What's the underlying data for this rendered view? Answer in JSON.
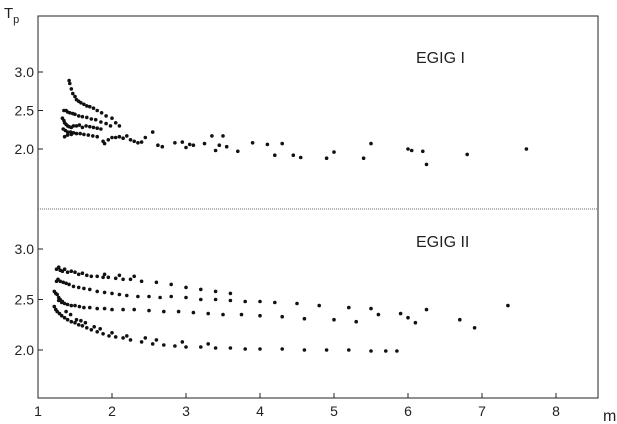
{
  "chart_data": {
    "type": "scatter",
    "y_axis_label": "Tp",
    "x_axis_label": "m",
    "x_range": [
      1,
      8
    ],
    "x_ticks": [
      "1",
      "2",
      "3",
      "4",
      "5",
      "6",
      "7",
      "8"
    ],
    "panels": [
      {
        "title": "EGIG I",
        "y_range": [
          1.6,
          3.3
        ],
        "y_ticks": [
          "3.0",
          "2.5",
          "2.0"
        ],
        "points": [
          [
            1.42,
            2.89
          ],
          [
            1.43,
            2.85
          ],
          [
            1.45,
            2.78
          ],
          [
            1.47,
            2.72
          ],
          [
            1.5,
            2.68
          ],
          [
            1.52,
            2.64
          ],
          [
            1.55,
            2.62
          ],
          [
            1.58,
            2.6
          ],
          [
            1.62,
            2.58
          ],
          [
            1.66,
            2.56
          ],
          [
            1.7,
            2.55
          ],
          [
            1.75,
            2.53
          ],
          [
            1.8,
            2.5
          ],
          [
            1.86,
            2.47
          ],
          [
            1.92,
            2.43
          ],
          [
            2.0,
            2.4
          ],
          [
            2.05,
            2.34
          ],
          [
            2.1,
            2.3
          ],
          [
            1.35,
            2.5
          ],
          [
            1.38,
            2.5
          ],
          [
            1.4,
            2.48
          ],
          [
            1.43,
            2.47
          ],
          [
            1.47,
            2.46
          ],
          [
            1.5,
            2.45
          ],
          [
            1.55,
            2.43
          ],
          [
            1.6,
            2.42
          ],
          [
            1.66,
            2.41
          ],
          [
            1.72,
            2.39
          ],
          [
            1.78,
            2.38
          ],
          [
            1.85,
            2.35
          ],
          [
            1.92,
            2.33
          ],
          [
            1.98,
            2.3
          ],
          [
            1.33,
            2.4
          ],
          [
            1.35,
            2.37
          ],
          [
            1.36,
            2.34
          ],
          [
            1.38,
            2.32
          ],
          [
            1.4,
            2.3
          ],
          [
            1.42,
            2.29
          ],
          [
            1.45,
            2.28
          ],
          [
            1.48,
            2.3
          ],
          [
            1.52,
            2.3
          ],
          [
            1.56,
            2.31
          ],
          [
            1.6,
            2.28
          ],
          [
            1.65,
            2.3
          ],
          [
            1.7,
            2.29
          ],
          [
            1.75,
            2.28
          ],
          [
            1.8,
            2.27
          ],
          [
            1.85,
            2.26
          ],
          [
            1.34,
            2.26
          ],
          [
            1.37,
            2.24
          ],
          [
            1.4,
            2.22
          ],
          [
            1.44,
            2.22
          ],
          [
            1.48,
            2.21
          ],
          [
            1.52,
            2.2
          ],
          [
            1.57,
            2.2
          ],
          [
            1.62,
            2.19
          ],
          [
            1.68,
            2.18
          ],
          [
            1.74,
            2.17
          ],
          [
            1.8,
            2.16
          ],
          [
            1.36,
            2.16
          ],
          [
            1.4,
            2.18
          ],
          [
            1.45,
            2.19
          ],
          [
            1.88,
            2.1
          ],
          [
            1.9,
            2.07
          ],
          [
            1.95,
            2.12
          ],
          [
            2.0,
            2.15
          ],
          [
            2.05,
            2.15
          ],
          [
            2.1,
            2.16
          ],
          [
            2.15,
            2.14
          ],
          [
            2.2,
            2.17
          ],
          [
            2.25,
            2.12
          ],
          [
            2.3,
            2.1
          ],
          [
            2.35,
            2.08
          ],
          [
            2.4,
            2.09
          ],
          [
            2.45,
            2.15
          ],
          [
            2.55,
            2.22
          ],
          [
            2.62,
            2.05
          ],
          [
            2.68,
            2.03
          ],
          [
            2.85,
            2.08
          ],
          [
            2.95,
            2.09
          ],
          [
            3.05,
            2.06
          ],
          [
            3.1,
            2.05
          ],
          [
            3.0,
            2.02
          ],
          [
            3.25,
            2.07
          ],
          [
            3.35,
            2.17
          ],
          [
            3.4,
            1.98
          ],
          [
            3.45,
            2.05
          ],
          [
            3.5,
            2.17
          ],
          [
            3.55,
            2.03
          ],
          [
            3.7,
            1.97
          ],
          [
            3.9,
            2.08
          ],
          [
            4.1,
            2.06
          ],
          [
            4.2,
            1.92
          ],
          [
            4.3,
            2.07
          ],
          [
            4.45,
            1.92
          ],
          [
            4.55,
            1.89
          ],
          [
            4.9,
            1.88
          ],
          [
            5.0,
            1.96
          ],
          [
            5.4,
            1.88
          ],
          [
            5.5,
            2.07
          ],
          [
            6.0,
            2.0
          ],
          [
            6.05,
            1.98
          ],
          [
            6.2,
            1.97
          ],
          [
            6.25,
            1.8
          ],
          [
            6.8,
            1.93
          ],
          [
            7.6,
            2.0
          ]
        ]
      },
      {
        "title": "EGIG II",
        "y_range": [
          1.6,
          3.3
        ],
        "y_ticks": [
          "3.0",
          "2.5",
          "2.0"
        ],
        "points": [
          [
            1.25,
            2.8
          ],
          [
            1.28,
            2.82
          ],
          [
            1.3,
            2.79
          ],
          [
            1.33,
            2.78
          ],
          [
            1.36,
            2.8
          ],
          [
            1.4,
            2.77
          ],
          [
            1.45,
            2.78
          ],
          [
            1.5,
            2.77
          ],
          [
            1.55,
            2.75
          ],
          [
            1.6,
            2.76
          ],
          [
            1.66,
            2.74
          ],
          [
            1.72,
            2.73
          ],
          [
            1.8,
            2.73
          ],
          [
            1.88,
            2.72
          ],
          [
            1.95,
            2.72
          ],
          [
            2.05,
            2.71
          ],
          [
            2.15,
            2.7
          ],
          [
            2.25,
            2.7
          ],
          [
            2.4,
            2.68
          ],
          [
            2.6,
            2.67
          ],
          [
            2.8,
            2.65
          ],
          [
            3.0,
            2.62
          ],
          [
            3.2,
            2.6
          ],
          [
            3.4,
            2.58
          ],
          [
            3.6,
            2.56
          ],
          [
            1.9,
            2.75
          ],
          [
            2.1,
            2.74
          ],
          [
            2.3,
            2.73
          ],
          [
            1.25,
            2.68
          ],
          [
            1.27,
            2.7
          ],
          [
            1.3,
            2.68
          ],
          [
            1.34,
            2.67
          ],
          [
            1.38,
            2.66
          ],
          [
            1.42,
            2.65
          ],
          [
            1.48,
            2.63
          ],
          [
            1.55,
            2.62
          ],
          [
            1.62,
            2.61
          ],
          [
            1.7,
            2.6
          ],
          [
            1.8,
            2.58
          ],
          [
            1.9,
            2.57
          ],
          [
            2.0,
            2.56
          ],
          [
            2.1,
            2.55
          ],
          [
            2.2,
            2.54
          ],
          [
            2.35,
            2.53
          ],
          [
            2.5,
            2.53
          ],
          [
            2.65,
            2.52
          ],
          [
            2.8,
            2.53
          ],
          [
            3.0,
            2.52
          ],
          [
            3.2,
            2.5
          ],
          [
            3.4,
            2.5
          ],
          [
            3.6,
            2.49
          ],
          [
            3.8,
            2.48
          ],
          [
            4.0,
            2.48
          ],
          [
            4.2,
            2.47
          ],
          [
            4.5,
            2.46
          ],
          [
            4.8,
            2.44
          ],
          [
            5.2,
            2.42
          ],
          [
            5.5,
            2.41
          ],
          [
            1.22,
            2.58
          ],
          [
            1.24,
            2.56
          ],
          [
            1.26,
            2.55
          ],
          [
            1.28,
            2.52
          ],
          [
            1.3,
            2.5
          ],
          [
            1.33,
            2.48
          ],
          [
            1.36,
            2.46
          ],
          [
            1.4,
            2.45
          ],
          [
            1.45,
            2.44
          ],
          [
            1.5,
            2.44
          ],
          [
            1.56,
            2.43
          ],
          [
            1.62,
            2.42
          ],
          [
            1.7,
            2.42
          ],
          [
            1.8,
            2.41
          ],
          [
            1.9,
            2.41
          ],
          [
            2.0,
            2.4
          ],
          [
            2.15,
            2.4
          ],
          [
            2.3,
            2.4
          ],
          [
            2.5,
            2.39
          ],
          [
            2.7,
            2.38
          ],
          [
            2.9,
            2.38
          ],
          [
            3.1,
            2.37
          ],
          [
            3.3,
            2.36
          ],
          [
            3.5,
            2.35
          ],
          [
            3.75,
            2.35
          ],
          [
            4.0,
            2.34
          ],
          [
            4.3,
            2.33
          ],
          [
            4.6,
            2.31
          ],
          [
            5.0,
            2.3
          ],
          [
            5.3,
            2.28
          ],
          [
            6.1,
            2.27
          ],
          [
            6.25,
            2.4
          ],
          [
            6.7,
            2.3
          ],
          [
            6.9,
            2.22
          ],
          [
            7.35,
            2.44
          ],
          [
            1.22,
            2.43
          ],
          [
            1.24,
            2.4
          ],
          [
            1.26,
            2.38
          ],
          [
            1.29,
            2.36
          ],
          [
            1.32,
            2.34
          ],
          [
            1.36,
            2.32
          ],
          [
            1.4,
            2.3
          ],
          [
            1.45,
            2.28
          ],
          [
            1.5,
            2.27
          ],
          [
            1.55,
            2.25
          ],
          [
            1.6,
            2.24
          ],
          [
            1.66,
            2.22
          ],
          [
            1.72,
            2.2
          ],
          [
            1.8,
            2.18
          ],
          [
            1.88,
            2.16
          ],
          [
            1.96,
            2.14
          ],
          [
            2.05,
            2.13
          ],
          [
            2.15,
            2.12
          ],
          [
            2.25,
            2.1
          ],
          [
            2.4,
            2.08
          ],
          [
            2.55,
            2.06
          ],
          [
            2.7,
            2.05
          ],
          [
            2.85,
            2.04
          ],
          [
            3.0,
            2.03
          ],
          [
            3.2,
            2.03
          ],
          [
            3.4,
            2.02
          ],
          [
            3.6,
            2.02
          ],
          [
            3.8,
            2.01
          ],
          [
            4.0,
            2.01
          ],
          [
            4.3,
            2.01
          ],
          [
            4.6,
            2.0
          ],
          [
            4.9,
            2.0
          ],
          [
            5.2,
            2.0
          ],
          [
            5.5,
            1.99
          ],
          [
            5.7,
            1.99
          ],
          [
            5.85,
            1.99
          ],
          [
            1.28,
            2.49
          ],
          [
            1.32,
            2.47
          ],
          [
            1.38,
            2.38
          ],
          [
            1.44,
            2.35
          ],
          [
            1.52,
            2.3
          ],
          [
            1.58,
            2.29
          ],
          [
            1.64,
            2.27
          ],
          [
            1.76,
            2.23
          ],
          [
            1.84,
            2.21
          ],
          [
            2.0,
            2.17
          ],
          [
            2.2,
            2.14
          ],
          [
            2.45,
            2.12
          ],
          [
            2.6,
            2.1
          ],
          [
            2.95,
            2.08
          ],
          [
            3.3,
            2.06
          ],
          [
            5.6,
            2.35
          ],
          [
            5.9,
            2.36
          ],
          [
            6.0,
            2.32
          ]
        ]
      }
    ]
  }
}
